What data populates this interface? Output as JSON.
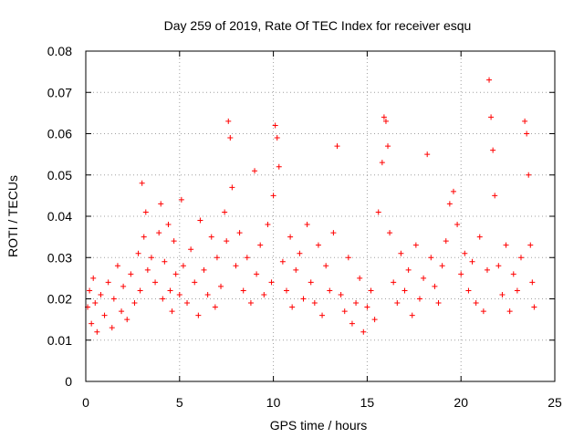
{
  "chart_data": {
    "type": "scatter",
    "title": "Day 259 of 2019, Rate Of TEC Index for receiver esqu",
    "xlabel": "GPS time / hours",
    "ylabel": "ROTI / TECUs",
    "xlim": [
      0,
      25
    ],
    "ylim": [
      0,
      0.08
    ],
    "x_ticks": [
      "0",
      "5",
      "10",
      "15",
      "20",
      "25"
    ],
    "y_ticks": [
      "0",
      "0.01",
      "0.02",
      "0.03",
      "0.04",
      "0.05",
      "0.06",
      "0.07",
      "0.08"
    ],
    "grid": true,
    "marker": "+",
    "color": "#ff0000",
    "series": [
      {
        "name": "ROTI",
        "x": [
          0.1,
          0.2,
          0.3,
          0.4,
          0.5,
          0.6,
          0.8,
          1.0,
          1.2,
          1.4,
          1.5,
          1.7,
          1.9,
          2.0,
          2.2,
          2.4,
          2.6,
          2.8,
          2.9,
          3.0,
          3.1,
          3.2,
          3.3,
          3.5,
          3.7,
          3.9,
          4.0,
          4.1,
          4.2,
          4.4,
          4.5,
          4.6,
          4.7,
          4.8,
          5.0,
          5.1,
          5.2,
          5.4,
          5.6,
          5.8,
          6.0,
          6.1,
          6.3,
          6.5,
          6.7,
          6.9,
          7.0,
          7.2,
          7.4,
          7.5,
          7.6,
          7.7,
          7.8,
          8.0,
          8.2,
          8.4,
          8.6,
          8.8,
          9.0,
          9.1,
          9.3,
          9.5,
          9.7,
          9.9,
          10.0,
          10.1,
          10.2,
          10.3,
          10.5,
          10.7,
          10.9,
          11.0,
          11.2,
          11.4,
          11.6,
          11.8,
          12.0,
          12.2,
          12.4,
          12.6,
          12.8,
          13.0,
          13.2,
          13.4,
          13.6,
          13.8,
          14.0,
          14.2,
          14.4,
          14.6,
          14.8,
          15.0,
          15.2,
          15.4,
          15.6,
          15.8,
          15.9,
          16.0,
          16.1,
          16.2,
          16.4,
          16.6,
          16.8,
          17.0,
          17.2,
          17.4,
          17.6,
          17.8,
          18.0,
          18.2,
          18.4,
          18.6,
          18.8,
          19.0,
          19.2,
          19.4,
          19.6,
          19.8,
          20.0,
          20.2,
          20.4,
          20.6,
          20.8,
          21.0,
          21.2,
          21.4,
          21.5,
          21.6,
          21.7,
          21.8,
          22.0,
          22.2,
          22.4,
          22.6,
          22.8,
          23.0,
          23.2,
          23.4,
          23.5,
          23.6,
          23.7,
          23.8,
          23.9
        ],
        "y": [
          0.018,
          0.022,
          0.014,
          0.025,
          0.019,
          0.012,
          0.021,
          0.016,
          0.024,
          0.013,
          0.02,
          0.028,
          0.017,
          0.023,
          0.015,
          0.026,
          0.019,
          0.031,
          0.022,
          0.048,
          0.035,
          0.041,
          0.027,
          0.03,
          0.024,
          0.036,
          0.043,
          0.02,
          0.029,
          0.038,
          0.022,
          0.017,
          0.034,
          0.026,
          0.021,
          0.044,
          0.028,
          0.019,
          0.032,
          0.024,
          0.016,
          0.039,
          0.027,
          0.021,
          0.035,
          0.018,
          0.03,
          0.023,
          0.041,
          0.034,
          0.063,
          0.059,
          0.047,
          0.028,
          0.036,
          0.022,
          0.03,
          0.019,
          0.051,
          0.026,
          0.033,
          0.021,
          0.038,
          0.024,
          0.045,
          0.062,
          0.059,
          0.052,
          0.029,
          0.022,
          0.035,
          0.018,
          0.027,
          0.031,
          0.02,
          0.038,
          0.024,
          0.019,
          0.033,
          0.016,
          0.028,
          0.022,
          0.036,
          0.057,
          0.021,
          0.017,
          0.03,
          0.014,
          0.019,
          0.025,
          0.012,
          0.018,
          0.022,
          0.015,
          0.041,
          0.053,
          0.064,
          0.063,
          0.057,
          0.036,
          0.024,
          0.019,
          0.031,
          0.022,
          0.027,
          0.016,
          0.033,
          0.02,
          0.025,
          0.055,
          0.03,
          0.023,
          0.019,
          0.028,
          0.034,
          0.043,
          0.046,
          0.038,
          0.026,
          0.031,
          0.022,
          0.029,
          0.019,
          0.035,
          0.017,
          0.027,
          0.073,
          0.064,
          0.056,
          0.045,
          0.028,
          0.021,
          0.033,
          0.017,
          0.026,
          0.022,
          0.03,
          0.063,
          0.06,
          0.05,
          0.033,
          0.024,
          0.018
        ]
      }
    ]
  }
}
